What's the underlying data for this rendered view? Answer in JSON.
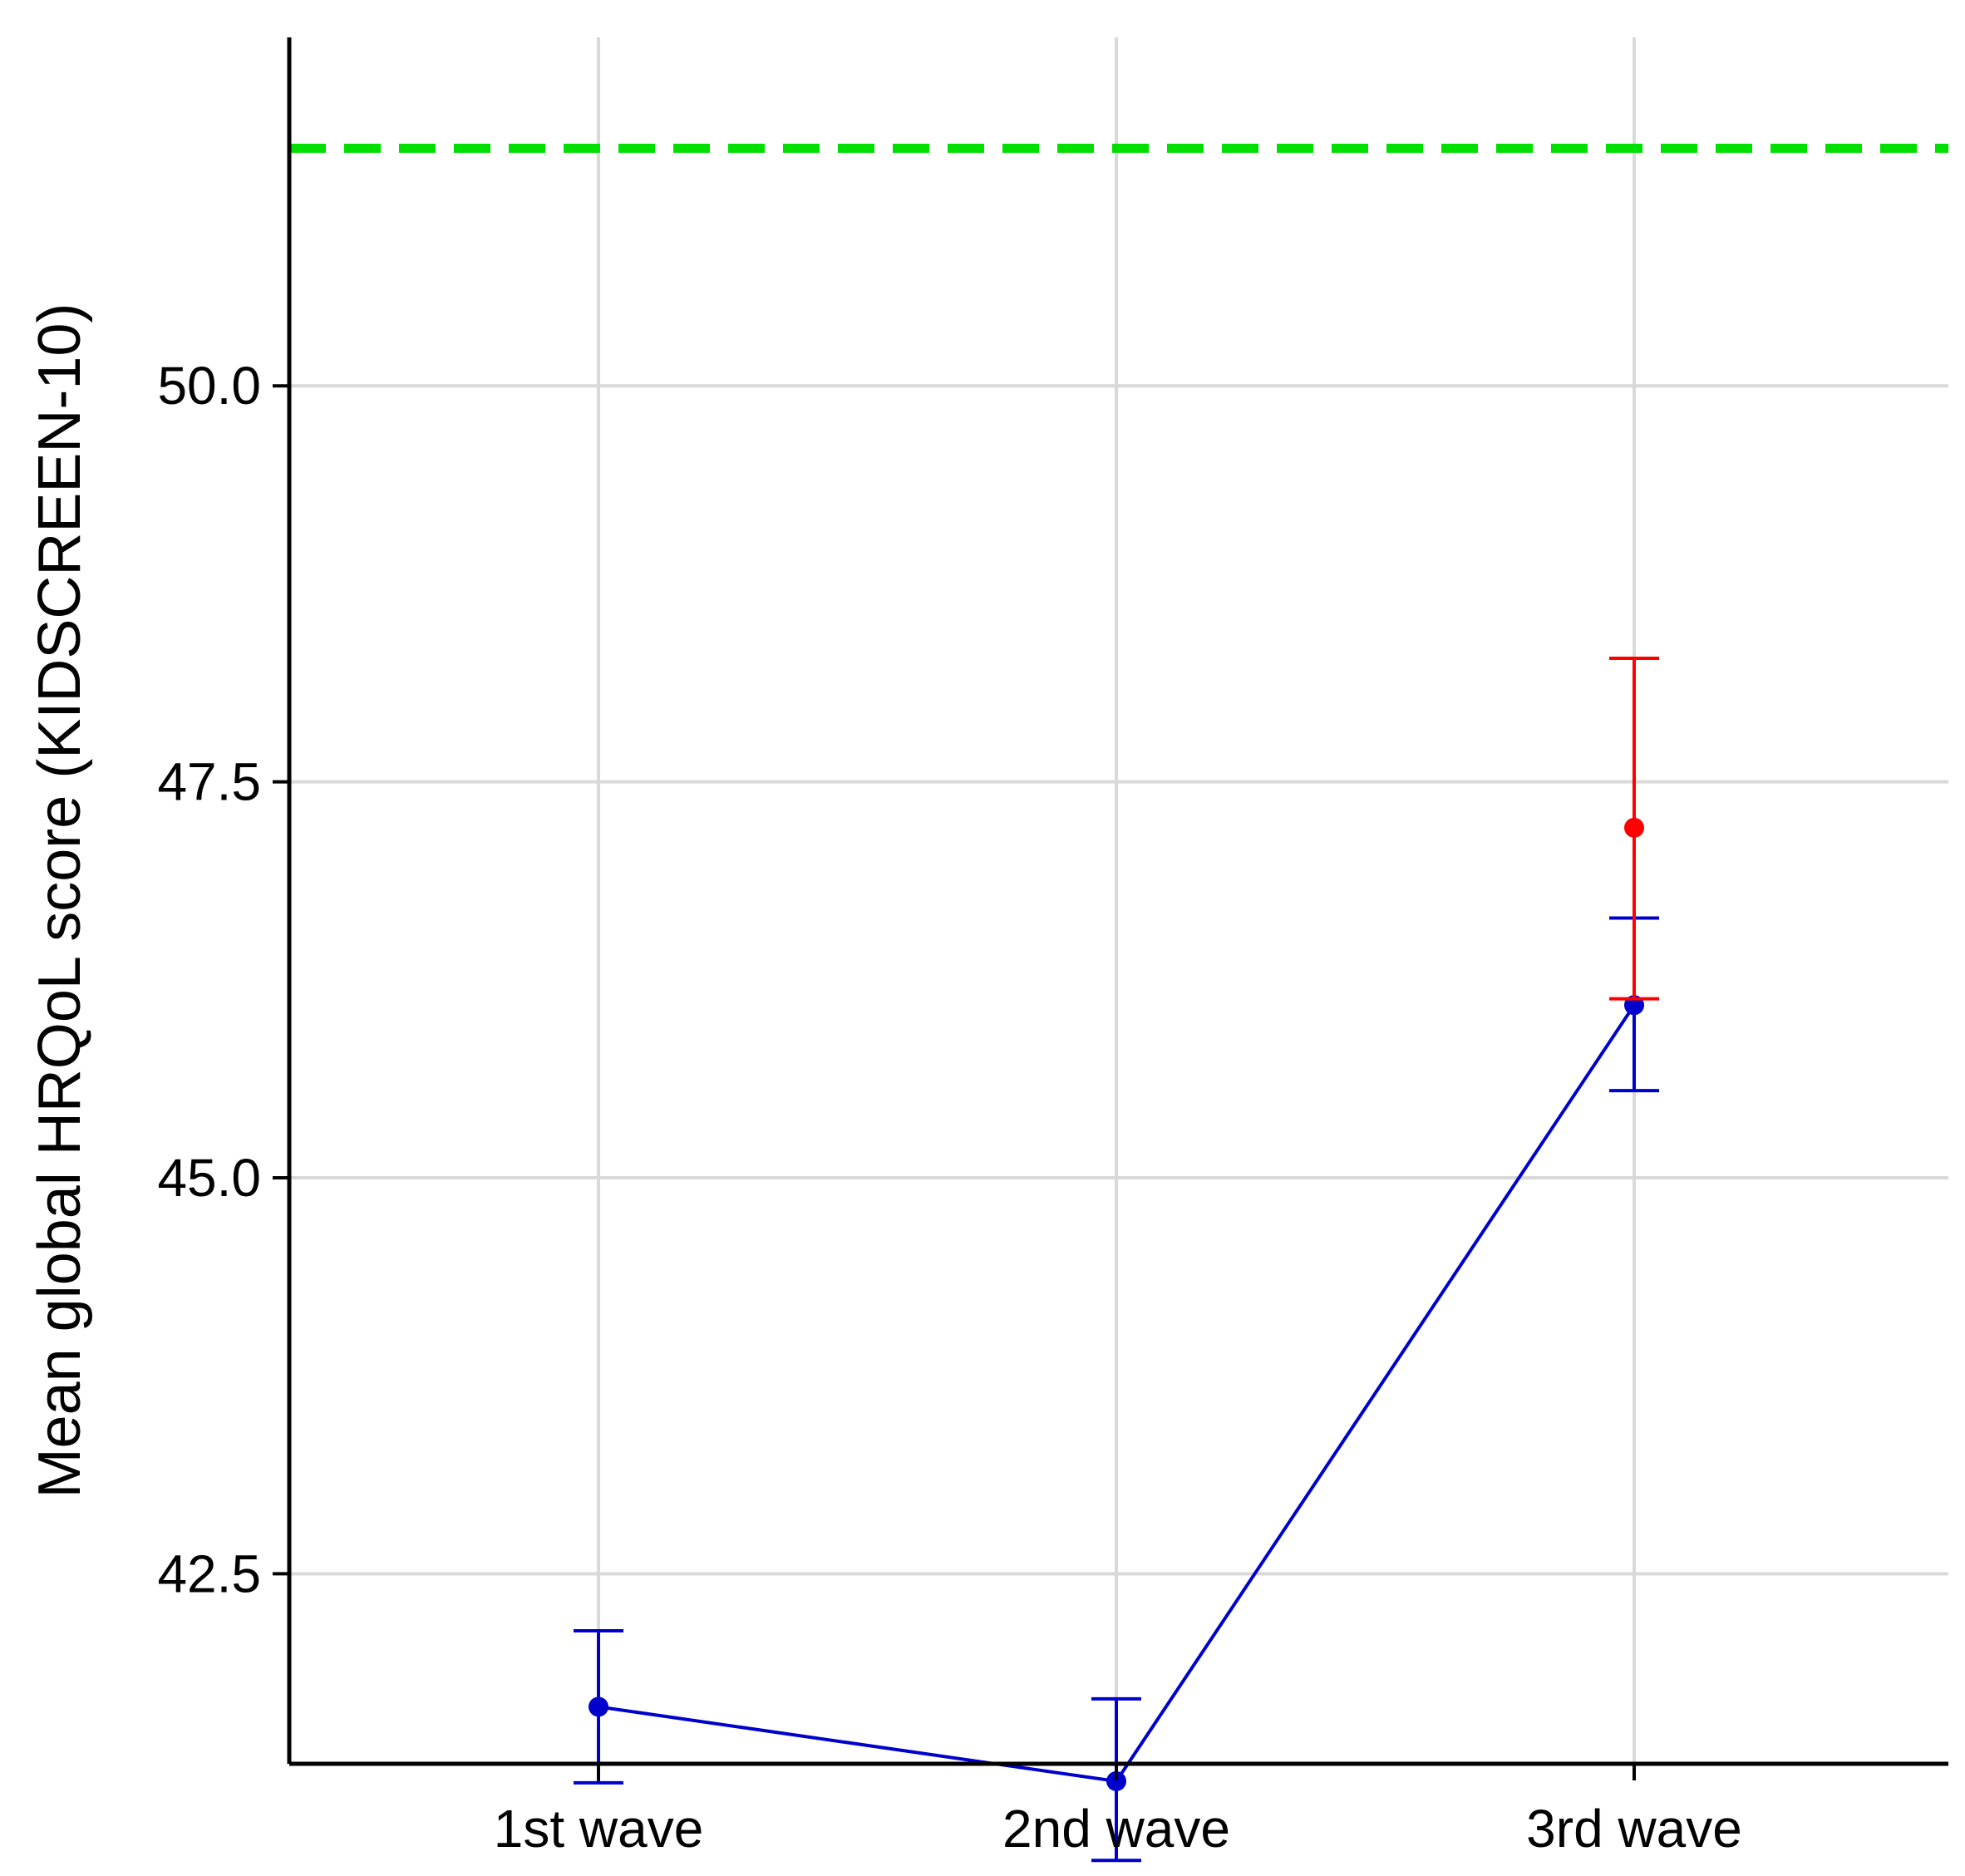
{
  "chart_data": {
    "type": "line",
    "title": "",
    "xlabel": "",
    "ylabel": "Mean global HRQoL score (KIDSCREEN-10)",
    "categories": [
      "1st wave",
      "2nd wave",
      "3rd wave"
    ],
    "ylim": [
      41.3,
      52.2
    ],
    "yticks": [
      42.5,
      45.0,
      47.5,
      50.0
    ],
    "ytick_labels": [
      "42.5",
      "45.0",
      "47.5",
      "50.0"
    ],
    "grid": true,
    "legend": "none",
    "series": [
      {
        "color": "#0000cc",
        "connected": true,
        "values": [
          41.66,
          41.19,
          46.09
        ],
        "ci_low": [
          41.18,
          40.69,
          45.55
        ],
        "ci_high": [
          42.14,
          41.71,
          46.64
        ]
      },
      {
        "color": "#ff0000",
        "connected": false,
        "points": [
          {
            "category": "3rd wave",
            "value": 47.21,
            "ci_low": 46.13,
            "ci_high": 48.28
          }
        ]
      }
    ],
    "reference_line": {
      "value": 51.5,
      "color": "#00e000",
      "style": "dashed"
    }
  }
}
